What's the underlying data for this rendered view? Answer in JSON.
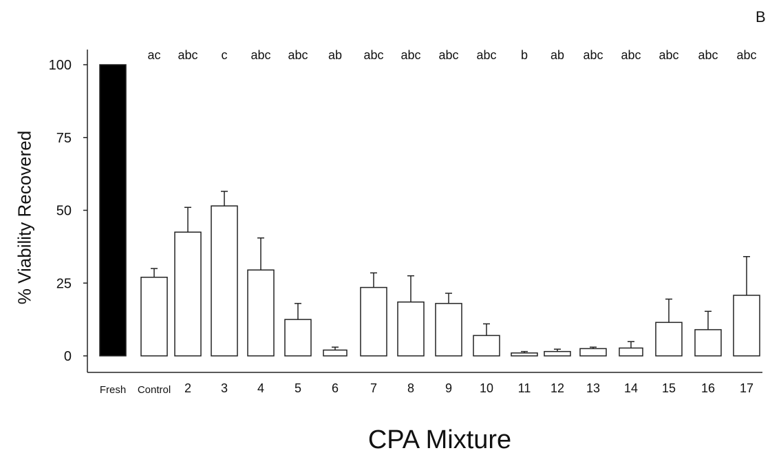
{
  "panel_letter": "B",
  "chart_data": {
    "type": "bar",
    "title": "",
    "xlabel": "CPA Mixture",
    "ylabel": "% Viability Recovered",
    "ylim": [
      0,
      100
    ],
    "yticks": [
      0,
      25,
      50,
      75,
      100
    ],
    "categories": [
      "Fresh",
      "Control",
      "2",
      "3",
      "4",
      "5",
      "6",
      "7",
      "8",
      "9",
      "10",
      "11",
      "12",
      "13",
      "14",
      "15",
      "16",
      "17"
    ],
    "values": [
      100,
      27,
      42.5,
      51.5,
      29.5,
      12.5,
      2,
      23.5,
      18.5,
      18,
      7,
      1,
      1.5,
      2.5,
      2.7,
      11.5,
      9,
      20.8
    ],
    "error_upper": [
      null,
      3,
      8.5,
      5,
      11,
      5.5,
      1,
      5,
      9,
      3.5,
      4,
      0.5,
      0.8,
      0.5,
      2.2,
      8,
      6.3,
      13.3
    ],
    "significance_letters": [
      null,
      "ac",
      "abc",
      "c",
      "abc",
      "abc",
      "ab",
      "abc",
      "abc",
      "abc",
      "abc",
      "b",
      "ab",
      "abc",
      "abc",
      "abc",
      "abc",
      "abc"
    ],
    "bar_fill": [
      "#000000",
      "#ffffff",
      "#ffffff",
      "#ffffff",
      "#ffffff",
      "#ffffff",
      "#ffffff",
      "#ffffff",
      "#ffffff",
      "#ffffff",
      "#ffffff",
      "#ffffff",
      "#ffffff",
      "#ffffff",
      "#ffffff",
      "#ffffff",
      "#ffffff",
      "#ffffff"
    ],
    "grid": false,
    "legend": "none"
  }
}
